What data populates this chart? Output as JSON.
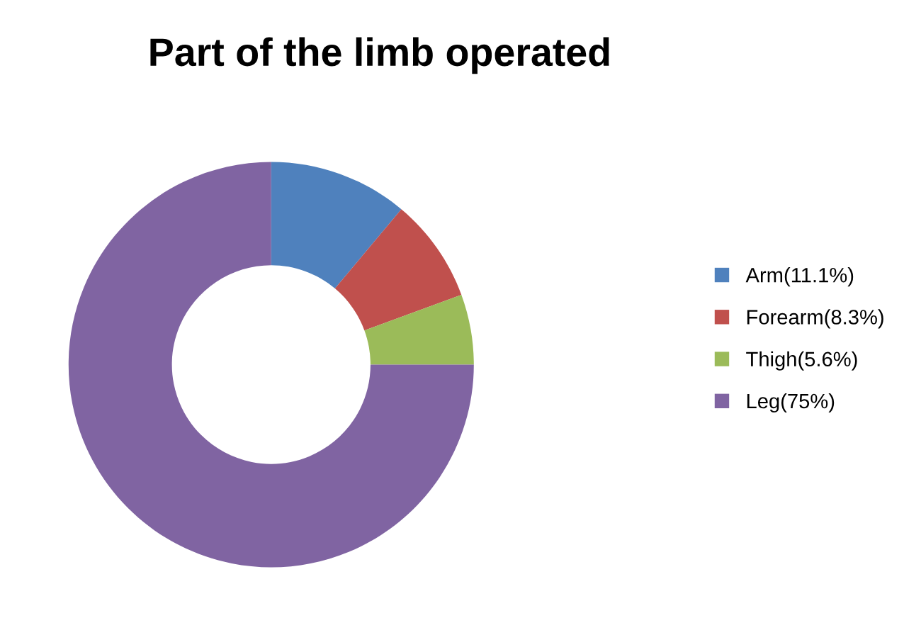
{
  "chart_data": {
    "type": "donut",
    "title": "Part of the limb operated",
    "categories": [
      "Arm(11.1%)",
      "Forearm(8.3%)",
      "Thigh(5.6%)",
      "Leg(75%)"
    ],
    "values": [
      11.1,
      8.3,
      5.6,
      75
    ],
    "colors": [
      "#4f81bd",
      "#c0504d",
      "#9bbb59",
      "#8064a2"
    ],
    "legend": "right"
  }
}
